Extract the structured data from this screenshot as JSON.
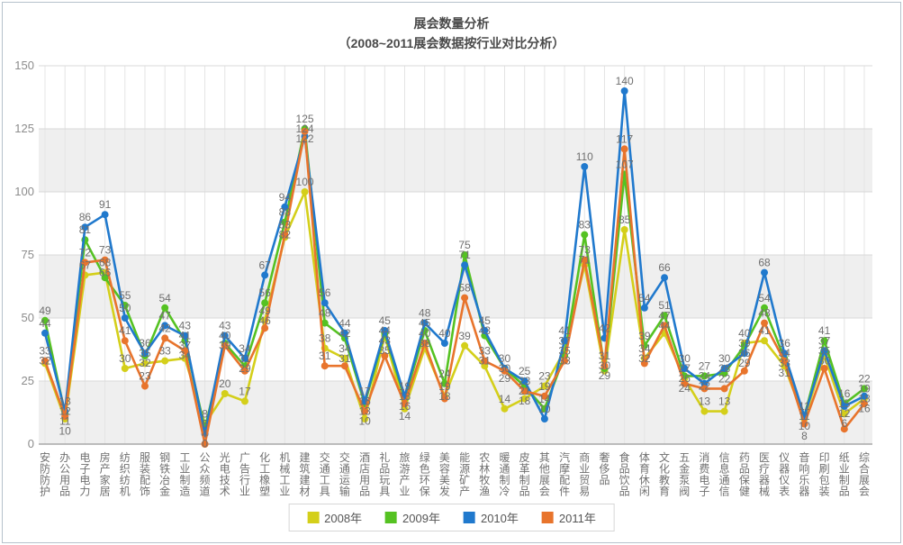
{
  "title": {
    "line1": "展会数量分析",
    "line2": "（2008~2011展会数据按行业对比分析）"
  },
  "axis": {
    "y_ticks": [
      0,
      25,
      50,
      75,
      100,
      125,
      150
    ]
  },
  "colors": {
    "band": "#efefef",
    "vgrid": "#e4e4e4",
    "hgrid": "#d9d9d9",
    "axis_line": "#a8a8a8",
    "tick_text": "#8c8c8c",
    "category_text": "#6f6f6f",
    "value_label_text": "#6f6f6f"
  },
  "chart_data": {
    "type": "line",
    "title": "展会数量分析",
    "subtitle": "（2008~2011展会数据按行业对比分析）",
    "xlabel": "",
    "ylabel": "",
    "ylim": [
      0,
      150
    ],
    "grid": true,
    "legend_position": "bottom",
    "categories": [
      "安防防护",
      "办公用品",
      "电子电力",
      "房产家居",
      "纺织纺机",
      "服装配饰",
      "钢铁冶金",
      "工业制造",
      "公众频道",
      "光电技术",
      "广告行业",
      "化工橡塑",
      "机械工业",
      "建筑建材",
      "交通工具",
      "交通运输",
      "酒店用品",
      "礼品玩具",
      "旅游产业",
      "绿色环保",
      "美容美发",
      "能源矿产",
      "农林牧渔",
      "暖通制冷",
      "皮革制品",
      "其他展会",
      "汽摩配件",
      "商业贸易",
      "奢侈品",
      "食品饮品",
      "体育休闲",
      "文化教育",
      "五金泵阀",
      "消费电子",
      "信息通信",
      "药品保健",
      "医疗器械",
      "仪器仪表",
      "音响乐器",
      "印刷包装",
      "纸业制品",
      "综合展会"
    ],
    "series": [
      {
        "name": "2008年",
        "color": "#d4cf1a",
        "values": [
          32,
          10,
          67,
          68,
          30,
          32,
          33,
          34,
          8,
          20,
          17,
          49,
          82,
          100,
          38,
          34,
          10,
          43,
          14,
          38,
          19,
          39,
          31,
          14,
          18,
          23,
          37,
          71,
          29,
          85,
          34,
          44,
          26,
          13,
          13,
          40,
          41,
          31,
          10,
          35,
          12,
          18
        ]
      },
      {
        "name": "2009年",
        "color": "#55c222",
        "values": [
          49,
          12,
          81,
          66,
          55,
          35,
          54,
          41,
          6,
          40,
          31,
          56,
          88,
          125,
          48,
          42,
          16,
          44,
          18,
          45,
          24,
          75,
          43,
          30,
          23,
          14,
          35,
          83,
          30,
          107,
          39,
          51,
          27,
          27,
          28,
          39,
          54,
          34,
          11,
          41,
          16,
          22
        ]
      },
      {
        "name": "2010年",
        "color": "#2079cd",
        "values": [
          44,
          13,
          86,
          91,
          50,
          36,
          47,
          43,
          4,
          43,
          34,
          67,
          94,
          122,
          56,
          44,
          17,
          45,
          19,
          48,
          40,
          71,
          45,
          30,
          25,
          10,
          41,
          110,
          42,
          140,
          54,
          66,
          30,
          24,
          30,
          36,
          68,
          36,
          11,
          37,
          15,
          19
        ]
      },
      {
        "name": "2011年",
        "color": "#e8742c",
        "values": [
          33,
          11,
          72,
          73,
          41,
          23,
          42,
          37,
          0,
          39,
          29,
          46,
          83,
          124,
          31,
          31,
          13,
          35,
          16,
          40,
          18,
          58,
          33,
          29,
          21,
          19,
          33,
          73,
          31,
          117,
          32,
          47,
          24,
          22,
          22,
          29,
          48,
          33,
          8,
          30,
          6,
          16
        ]
      }
    ]
  }
}
